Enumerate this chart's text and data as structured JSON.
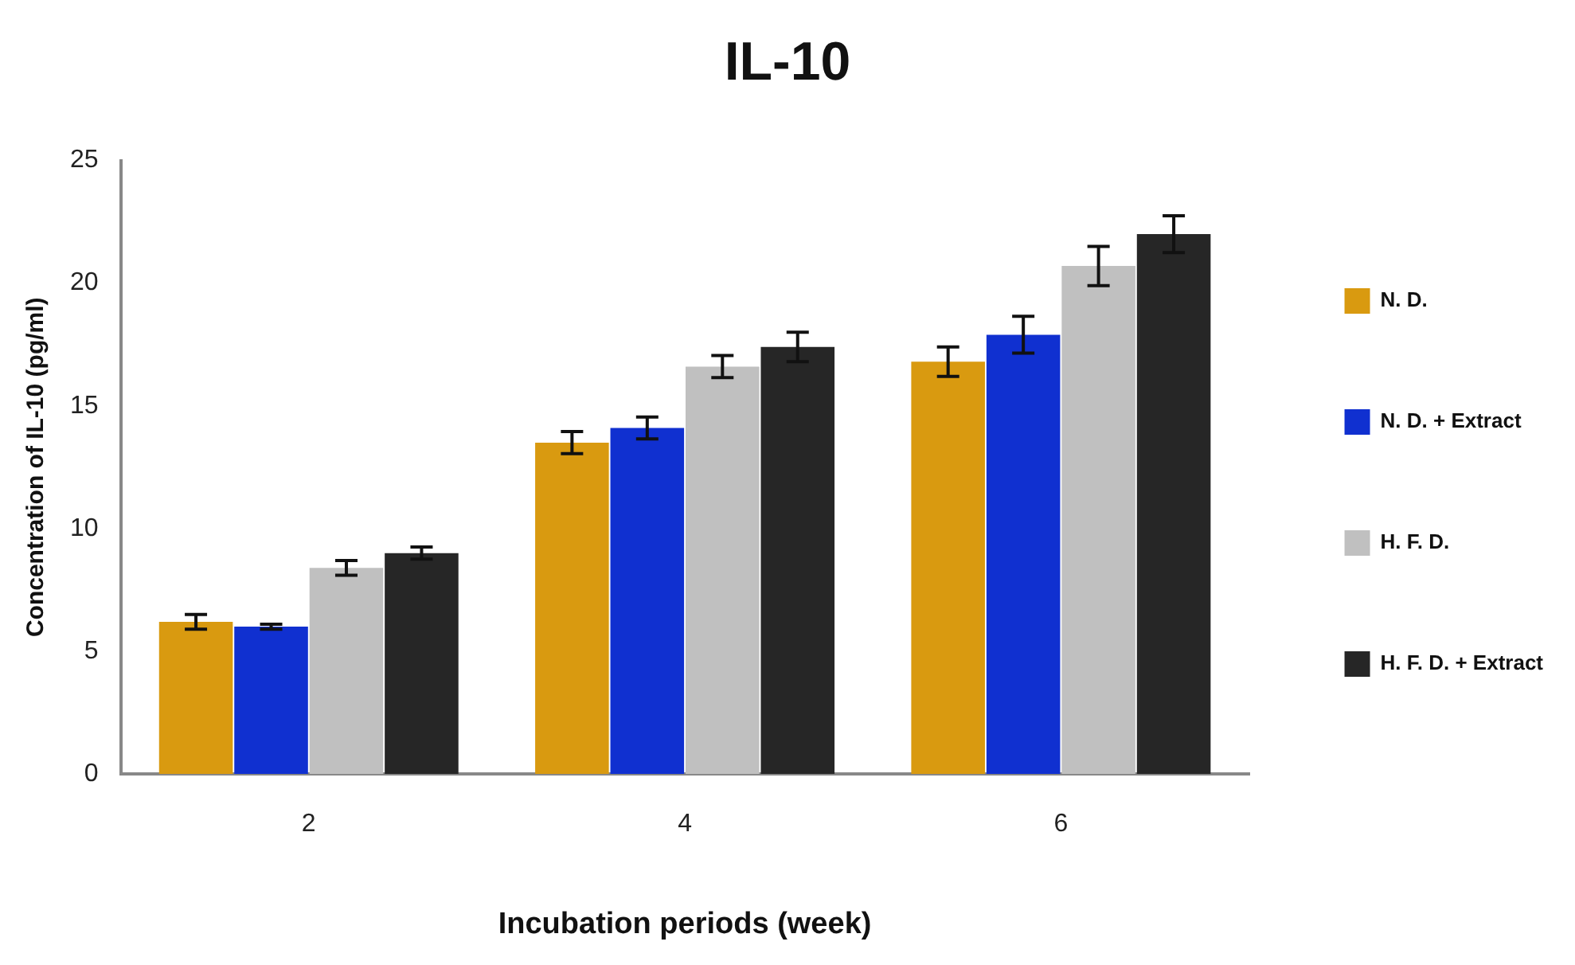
{
  "chart_data": {
    "type": "bar",
    "title": "IL-10",
    "xlabel": "Incubation periods (week)",
    "ylabel": "Concentration of IL-10 (pg/ml)",
    "categories": [
      "2",
      "4",
      "6"
    ],
    "series": [
      {
        "name": "N. D.",
        "color": "#d99a10",
        "values": [
          6.2,
          13.5,
          16.8
        ],
        "errors": [
          0.3,
          0.45,
          0.6
        ]
      },
      {
        "name": "N. D. + Extract",
        "color": "#1030d0",
        "values": [
          6.0,
          14.1,
          17.9
        ],
        "errors": [
          0.1,
          0.45,
          0.75
        ]
      },
      {
        "name": "H. F. D.",
        "color": "#c0c0c0",
        "values": [
          8.4,
          16.6,
          20.7
        ],
        "errors": [
          0.3,
          0.45,
          0.8
        ]
      },
      {
        "name": "H. F. D. + Extract",
        "color": "#262626",
        "values": [
          9.0,
          17.4,
          22.0
        ],
        "errors": [
          0.25,
          0.6,
          0.75
        ]
      }
    ],
    "ylim": [
      0,
      25
    ],
    "yticks": [
      0,
      5,
      10,
      15,
      20,
      25
    ],
    "grid": false,
    "legend": "right"
  }
}
